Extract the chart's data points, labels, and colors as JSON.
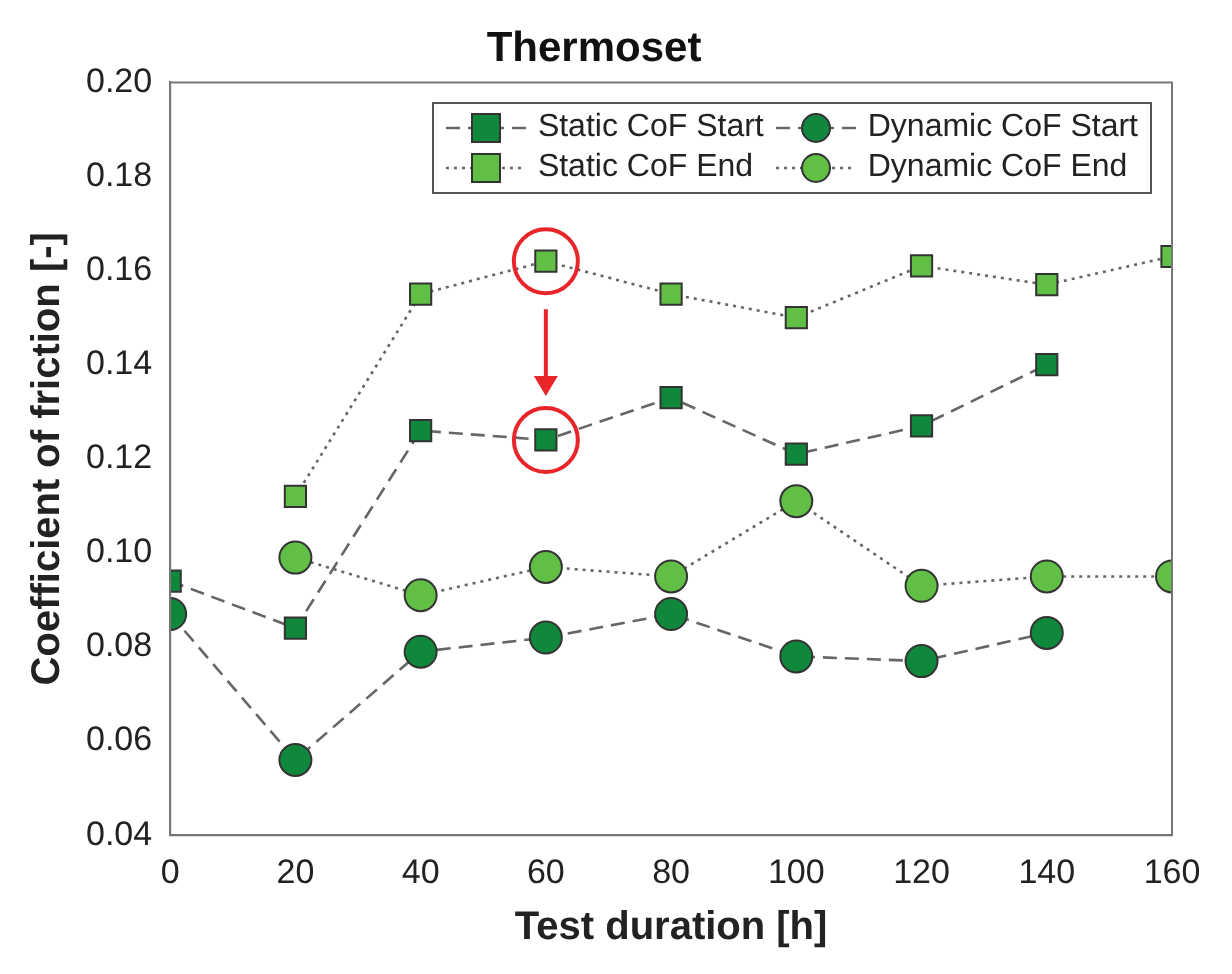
{
  "chart_data": {
    "type": "line",
    "title": "Thermoset",
    "xlabel": "Test duration [h]",
    "ylabel": "Coefficient of friction [-]",
    "x": [
      0,
      20,
      40,
      60,
      80,
      100,
      120,
      140,
      160
    ],
    "xlim": [
      0,
      160
    ],
    "xticks": [
      0,
      20,
      40,
      60,
      80,
      100,
      120,
      140,
      160
    ],
    "ylim": [
      0.04,
      0.2
    ],
    "yticks": [
      0.04,
      0.06,
      0.08,
      {
        "value": 0.1,
        "label": "0.10"
      },
      0.12,
      0.14,
      0.16,
      0.18,
      {
        "value": 0.2,
        "label": "0.20"
      }
    ],
    "grid": false,
    "legend": "top right",
    "series": [
      {
        "name": "Static CoF Start",
        "color": "#10883c",
        "marker": "square",
        "line_style": "dashed",
        "values": [
          0.094,
          0.084,
          0.126,
          0.124,
          0.133,
          0.121,
          0.127,
          0.14,
          null
        ]
      },
      {
        "name": "Static CoF End",
        "color": "#62bf46",
        "marker": "square",
        "line_style": "dotted",
        "values": [
          null,
          0.112,
          0.155,
          0.162,
          0.155,
          0.15,
          0.161,
          0.157,
          0.163
        ]
      },
      {
        "name": "Dynamic CoF Start",
        "color": "#10883c",
        "marker": "circle",
        "line_style": "dashed",
        "values": [
          0.087,
          0.056,
          0.079,
          0.082,
          0.087,
          0.078,
          0.077,
          0.083,
          null
        ]
      },
      {
        "name": "Dynamic CoF End",
        "color": "#62bf46",
        "marker": "circle",
        "line_style": "dotted",
        "values": [
          null,
          0.099,
          0.091,
          0.097,
          0.095,
          0.111,
          0.093,
          0.095,
          0.095
        ]
      }
    ]
  }
}
